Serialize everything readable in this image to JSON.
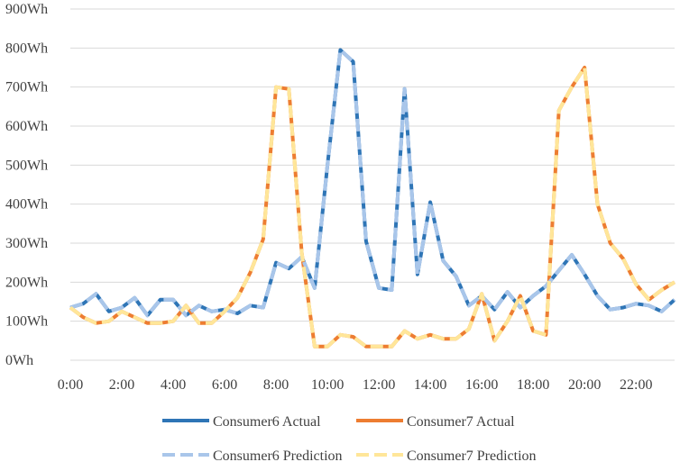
{
  "chart_data": {
    "type": "line",
    "title": "",
    "xlabel": "",
    "ylabel": "",
    "ylim": [
      0,
      900
    ],
    "y_ticks": [
      0,
      100,
      200,
      300,
      400,
      500,
      600,
      700,
      800,
      900
    ],
    "y_tick_labels": [
      "0Wh",
      "100Wh",
      "200Wh",
      "300Wh",
      "400Wh",
      "500Wh",
      "600Wh",
      "700Wh",
      "800Wh",
      "900Wh"
    ],
    "x_tick_labels": [
      "0:00",
      "2:00",
      "4:00",
      "6:00",
      "8:00",
      "10:00",
      "12:00",
      "14:00",
      "16:00",
      "18:00",
      "20:00",
      "22:00"
    ],
    "grid": true,
    "legend_position": "bottom",
    "x": [
      "0:00",
      "0:30",
      "1:00",
      "1:30",
      "2:00",
      "2:30",
      "3:00",
      "3:30",
      "4:00",
      "4:30",
      "5:00",
      "5:30",
      "6:00",
      "6:30",
      "7:00",
      "7:30",
      "8:00",
      "8:30",
      "9:00",
      "9:30",
      "10:00",
      "10:30",
      "11:00",
      "11:30",
      "12:00",
      "12:30",
      "13:00",
      "13:30",
      "14:00",
      "14:30",
      "15:00",
      "15:30",
      "16:00",
      "16:30",
      "17:00",
      "17:30",
      "18:00",
      "18:30",
      "19:00",
      "19:30",
      "20:00",
      "20:30",
      "21:00",
      "21:30",
      "22:00",
      "22:30",
      "23:00",
      "23:30"
    ],
    "series": [
      {
        "name": "Consumer6 Actual",
        "color": "#2E75B6",
        "style": "solid",
        "values": [
          135,
          145,
          170,
          125,
          135,
          160,
          115,
          155,
          155,
          115,
          140,
          125,
          130,
          120,
          140,
          135,
          250,
          235,
          265,
          185,
          500,
          795,
          765,
          305,
          185,
          180,
          695,
          220,
          405,
          255,
          215,
          140,
          165,
          130,
          175,
          135,
          165,
          190,
          230,
          270,
          220,
          165,
          130,
          135,
          145,
          140,
          125,
          155
        ]
      },
      {
        "name": "Consumer7 Actual",
        "color": "#ED7D31",
        "style": "solid",
        "values": [
          135,
          110,
          95,
          100,
          125,
          110,
          95,
          95,
          100,
          140,
          95,
          95,
          125,
          160,
          225,
          310,
          700,
          695,
          275,
          35,
          35,
          65,
          60,
          35,
          35,
          35,
          75,
          55,
          65,
          55,
          55,
          80,
          170,
          50,
          100,
          165,
          75,
          65,
          640,
          700,
          750,
          400,
          300,
          260,
          195,
          155,
          180,
          200
        ]
      },
      {
        "name": "Consumer6 Prediction",
        "color": "#A9C6EA",
        "style": "dashed",
        "values": [
          135,
          145,
          170,
          125,
          135,
          160,
          115,
          155,
          155,
          115,
          140,
          125,
          130,
          120,
          140,
          135,
          250,
          235,
          265,
          185,
          500,
          795,
          765,
          305,
          185,
          180,
          695,
          220,
          405,
          255,
          215,
          140,
          165,
          130,
          175,
          135,
          165,
          190,
          230,
          270,
          220,
          165,
          130,
          135,
          145,
          140,
          125,
          155
        ]
      },
      {
        "name": "Consumer7 Prediction",
        "color": "#FFE699",
        "style": "dashed",
        "values": [
          135,
          110,
          95,
          100,
          125,
          110,
          95,
          95,
          100,
          140,
          95,
          95,
          125,
          160,
          225,
          310,
          700,
          695,
          275,
          35,
          35,
          65,
          60,
          35,
          35,
          35,
          75,
          55,
          65,
          55,
          55,
          80,
          170,
          50,
          100,
          165,
          75,
          65,
          640,
          700,
          750,
          400,
          300,
          260,
          195,
          155,
          180,
          200
        ]
      }
    ]
  }
}
